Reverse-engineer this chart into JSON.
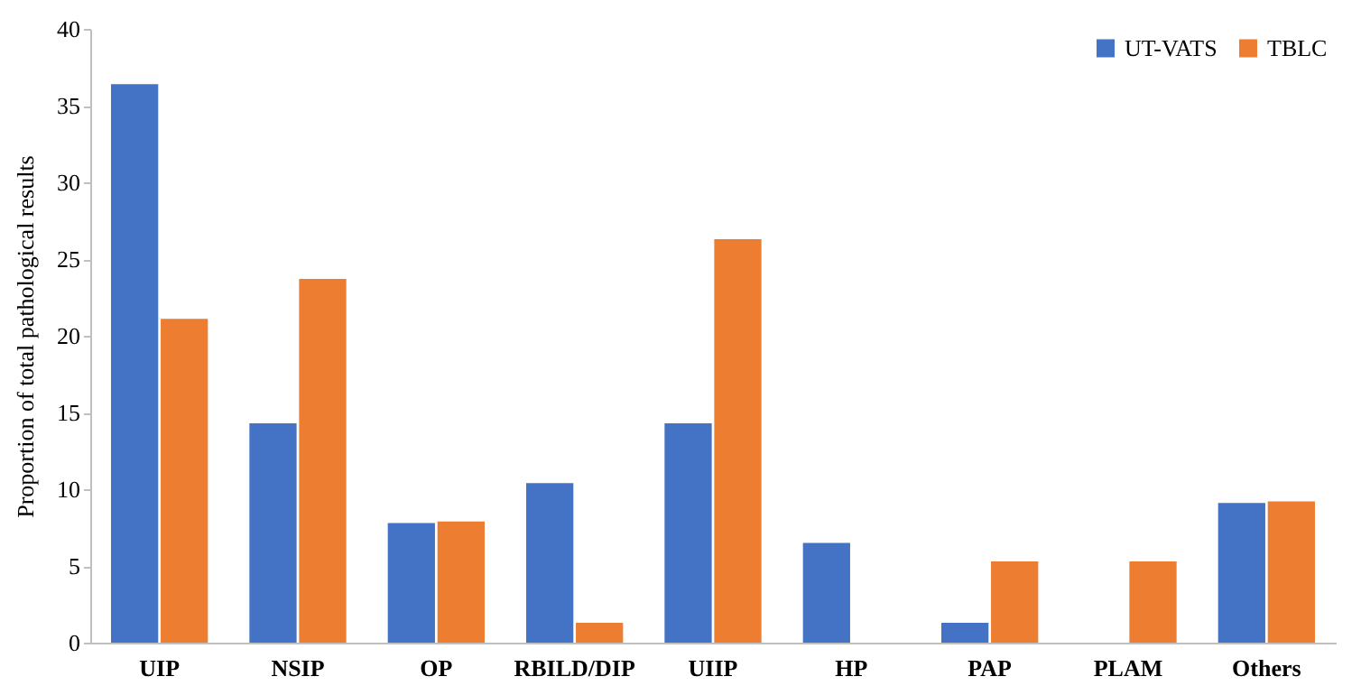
{
  "chart_data": {
    "type": "bar",
    "ylabel": "Proportion of total pathological results",
    "categories": [
      "UIP",
      "NSIP",
      "OP",
      "RBILD/DIP",
      "UIIP",
      "HP",
      "PAP",
      "PLAM",
      "Others"
    ],
    "series": [
      {
        "name": "UT-VATS",
        "color": "#4472c4",
        "values": [
          36.4,
          14.3,
          7.8,
          10.4,
          14.3,
          6.5,
          1.3,
          0,
          9.1
        ]
      },
      {
        "name": "TBLC",
        "color": "#ed7d31",
        "values": [
          21.1,
          23.7,
          7.9,
          1.3,
          26.3,
          0,
          5.3,
          5.3,
          9.2
        ]
      }
    ],
    "ylim": [
      0,
      40
    ],
    "yticks": [
      0,
      5,
      10,
      15,
      20,
      25,
      30,
      35,
      40
    ],
    "grid": false,
    "legend": "top right"
  }
}
